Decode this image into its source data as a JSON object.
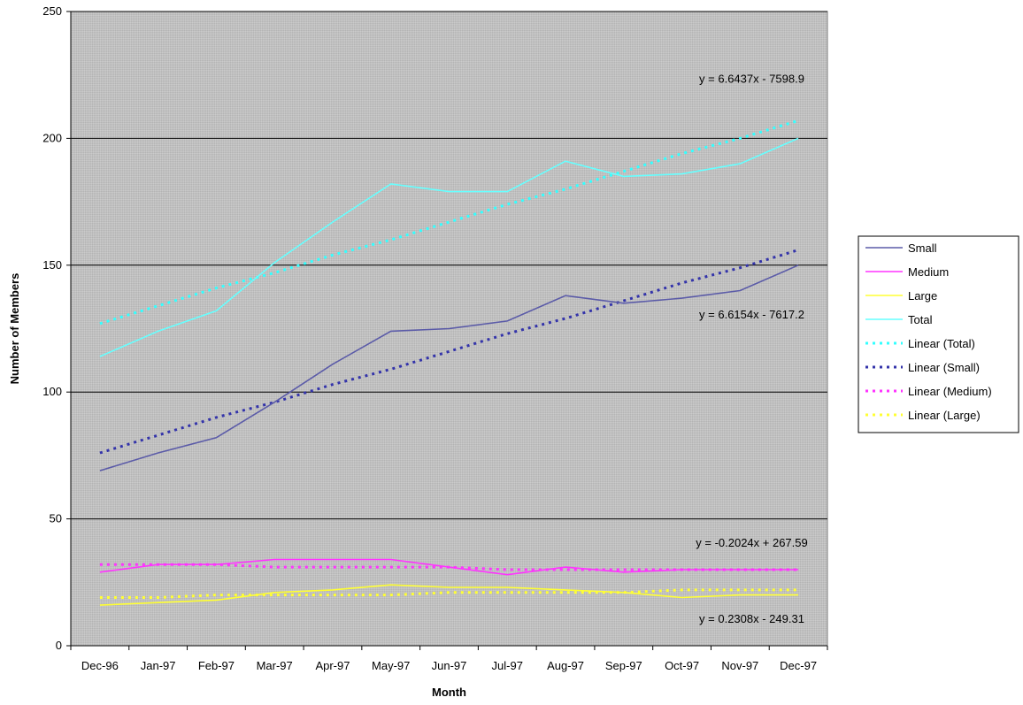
{
  "chart_data": {
    "type": "line",
    "title": "",
    "xlabel": "Month",
    "ylabel": "Number of Members",
    "ylim": [
      0,
      250
    ],
    "yticks": [
      0,
      50,
      100,
      150,
      200,
      250
    ],
    "grid": "horizontal major gridlines",
    "legend_position": "right",
    "categories": [
      "Dec-96",
      "Jan-97",
      "Feb-97",
      "Mar-97",
      "Apr-97",
      "May-97",
      "Jun-97",
      "Jul-97",
      "Aug-97",
      "Sep-97",
      "Oct-97",
      "Nov-97",
      "Dec-97"
    ],
    "series": [
      {
        "name": "Small",
        "color": "#5b5ba8",
        "style": "solid",
        "values": [
          69,
          76,
          82,
          96,
          111,
          124,
          125,
          128,
          138,
          135,
          137,
          140,
          150
        ]
      },
      {
        "name": "Medium",
        "color": "#ff33ff",
        "style": "solid",
        "values": [
          29,
          32,
          32,
          34,
          34,
          34,
          31,
          28,
          31,
          29,
          30,
          30,
          30
        ]
      },
      {
        "name": "Large",
        "color": "#ffff33",
        "style": "solid",
        "values": [
          16,
          17,
          18,
          21,
          22,
          24,
          23,
          23,
          22,
          21,
          19,
          20,
          20
        ]
      },
      {
        "name": "Total",
        "color": "#66ffff",
        "style": "solid",
        "values": [
          114,
          124,
          132,
          151,
          167,
          182,
          179,
          179,
          191,
          185,
          186,
          190,
          200
        ]
      },
      {
        "name": "Linear (Total)",
        "color": "#33ffff",
        "style": "dotted",
        "values": [
          127,
          134,
          141,
          147,
          154,
          160,
          167,
          174,
          180,
          187,
          194,
          200,
          207
        ]
      },
      {
        "name": "Linear (Small)",
        "color": "#3333aa",
        "style": "dotted",
        "values": [
          76,
          83,
          90,
          96,
          103,
          109,
          116,
          123,
          129,
          136,
          143,
          149,
          156
        ]
      },
      {
        "name": "Linear (Medium)",
        "color": "#ff33ff",
        "style": "dotted",
        "values": [
          32,
          32,
          32,
          31,
          31,
          31,
          31,
          30,
          30,
          30,
          30,
          30,
          30
        ]
      },
      {
        "name": "Linear (Large)",
        "color": "#ffff33",
        "style": "dotted",
        "values": [
          19,
          19,
          20,
          20,
          20,
          20,
          21,
          21,
          21,
          21,
          22,
          22,
          22
        ]
      }
    ],
    "annotations": [
      {
        "text": "y = 6.6437x - 7598.9",
        "near": "Linear (Total)",
        "x_index": 11.2,
        "y_value": 222
      },
      {
        "text": "y = 6.6154x - 7617.2",
        "near": "Linear (Small)",
        "x_index": 11.2,
        "y_value": 129
      },
      {
        "text": "y = -0.2024x + 267.59",
        "near": "Linear (Medium)",
        "x_index": 11.2,
        "y_value": 39
      },
      {
        "text": "y = 0.2308x - 249.31",
        "near": "Linear (Large)",
        "x_index": 11.2,
        "y_value": 9
      }
    ],
    "colors": {
      "plot_background": "#c0c0c0",
      "gridline": "#000000",
      "legend_background": "#ffffff"
    }
  }
}
